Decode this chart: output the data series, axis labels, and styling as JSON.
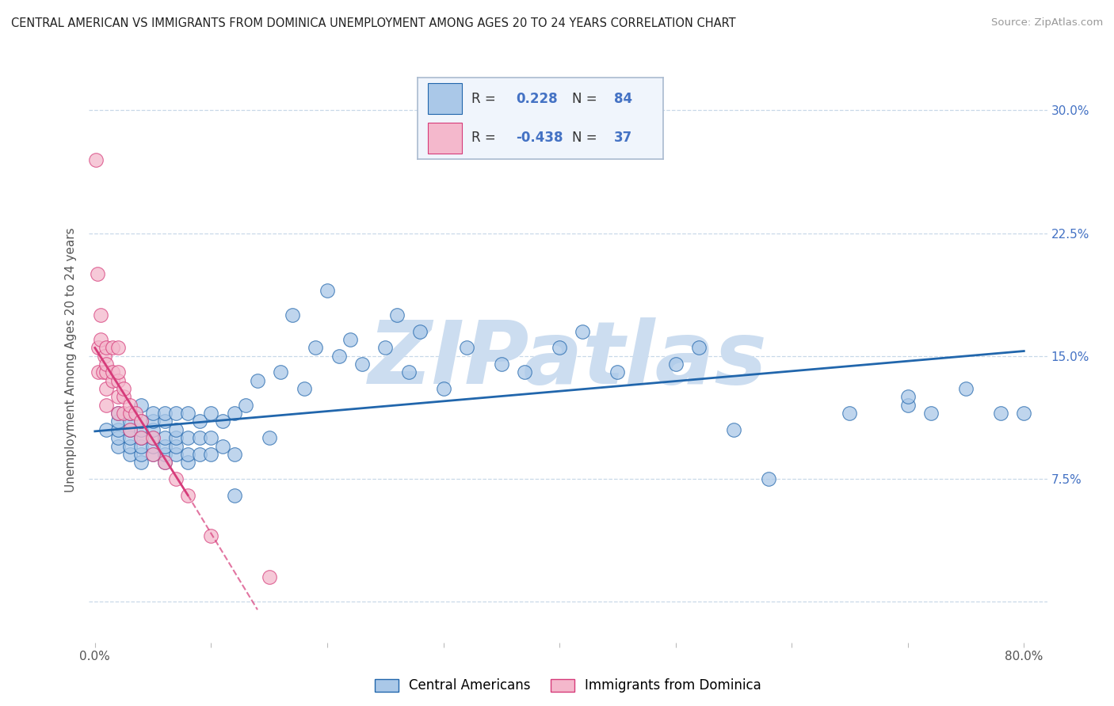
{
  "title": "CENTRAL AMERICAN VS IMMIGRANTS FROM DOMINICA UNEMPLOYMENT AMONG AGES 20 TO 24 YEARS CORRELATION CHART",
  "source": "Source: ZipAtlas.com",
  "ylabel": "Unemployment Among Ages 20 to 24 years",
  "xlim": [
    -0.005,
    0.82
  ],
  "ylim": [
    -0.025,
    0.32
  ],
  "xtick_positions": [
    0.0,
    0.1,
    0.2,
    0.3,
    0.4,
    0.5,
    0.6,
    0.7,
    0.8
  ],
  "xticklabels": [
    "0.0%",
    "",
    "",
    "",
    "",
    "",
    "",
    "",
    "80.0%"
  ],
  "ytick_positions": [
    0.0,
    0.075,
    0.15,
    0.225,
    0.3
  ],
  "ytick_labels_right": [
    "",
    "7.5%",
    "15.0%",
    "22.5%",
    "30.0%"
  ],
  "blue_R": 0.228,
  "blue_N": 84,
  "pink_R": -0.438,
  "pink_N": 37,
  "blue_dot_color": "#aac8e8",
  "pink_dot_color": "#f4b8cc",
  "blue_line_color": "#2166ac",
  "pink_line_color": "#d63b7a",
  "grid_color": "#c8d8e8",
  "bg_color": "#ffffff",
  "watermark_color": "#ccddf0",
  "blue_scatter_x": [
    0.01,
    0.02,
    0.02,
    0.02,
    0.02,
    0.02,
    0.03,
    0.03,
    0.03,
    0.03,
    0.03,
    0.03,
    0.04,
    0.04,
    0.04,
    0.04,
    0.04,
    0.04,
    0.04,
    0.05,
    0.05,
    0.05,
    0.05,
    0.05,
    0.05,
    0.06,
    0.06,
    0.06,
    0.06,
    0.06,
    0.06,
    0.07,
    0.07,
    0.07,
    0.07,
    0.07,
    0.08,
    0.08,
    0.08,
    0.08,
    0.09,
    0.09,
    0.09,
    0.1,
    0.1,
    0.1,
    0.11,
    0.11,
    0.12,
    0.12,
    0.13,
    0.14,
    0.15,
    0.16,
    0.17,
    0.18,
    0.19,
    0.2,
    0.21,
    0.22,
    0.23,
    0.25,
    0.26,
    0.27,
    0.28,
    0.3,
    0.32,
    0.35,
    0.37,
    0.4,
    0.42,
    0.45,
    0.5,
    0.52,
    0.55,
    0.58,
    0.65,
    0.7,
    0.72,
    0.75,
    0.78,
    0.8,
    0.7,
    0.12
  ],
  "blue_scatter_y": [
    0.105,
    0.095,
    0.1,
    0.105,
    0.11,
    0.115,
    0.09,
    0.095,
    0.1,
    0.105,
    0.11,
    0.115,
    0.085,
    0.09,
    0.095,
    0.1,
    0.105,
    0.11,
    0.12,
    0.09,
    0.095,
    0.1,
    0.105,
    0.11,
    0.115,
    0.085,
    0.09,
    0.095,
    0.1,
    0.11,
    0.115,
    0.09,
    0.095,
    0.1,
    0.105,
    0.115,
    0.085,
    0.09,
    0.1,
    0.115,
    0.09,
    0.1,
    0.11,
    0.09,
    0.1,
    0.115,
    0.095,
    0.11,
    0.09,
    0.115,
    0.12,
    0.135,
    0.1,
    0.14,
    0.175,
    0.13,
    0.155,
    0.19,
    0.15,
    0.16,
    0.145,
    0.155,
    0.175,
    0.14,
    0.165,
    0.13,
    0.155,
    0.145,
    0.14,
    0.155,
    0.165,
    0.14,
    0.145,
    0.155,
    0.105,
    0.075,
    0.115,
    0.12,
    0.115,
    0.13,
    0.115,
    0.115,
    0.125,
    0.065
  ],
  "pink_scatter_x": [
    0.001,
    0.002,
    0.003,
    0.003,
    0.005,
    0.005,
    0.007,
    0.008,
    0.01,
    0.01,
    0.01,
    0.01,
    0.01,
    0.015,
    0.015,
    0.015,
    0.02,
    0.02,
    0.02,
    0.02,
    0.02,
    0.025,
    0.025,
    0.025,
    0.03,
    0.03,
    0.03,
    0.035,
    0.04,
    0.04,
    0.05,
    0.05,
    0.06,
    0.07,
    0.08,
    0.1,
    0.15
  ],
  "pink_scatter_y": [
    0.27,
    0.2,
    0.14,
    0.155,
    0.16,
    0.175,
    0.14,
    0.15,
    0.13,
    0.14,
    0.145,
    0.155,
    0.12,
    0.135,
    0.14,
    0.155,
    0.115,
    0.125,
    0.135,
    0.14,
    0.155,
    0.115,
    0.125,
    0.13,
    0.105,
    0.115,
    0.12,
    0.115,
    0.1,
    0.11,
    0.09,
    0.1,
    0.085,
    0.075,
    0.065,
    0.04,
    0.015
  ],
  "blue_trend_x0": 0.0,
  "blue_trend_y0": 0.104,
  "blue_trend_x1": 0.8,
  "blue_trend_y1": 0.153,
  "pink_trend_solid_x0": 0.0,
  "pink_trend_solid_y0": 0.155,
  "pink_trend_solid_x1": 0.08,
  "pink_trend_solid_y1": 0.065,
  "pink_trend_dash_x0": 0.08,
  "pink_trend_dash_y0": 0.065,
  "pink_trend_dash_x1": 0.14,
  "pink_trend_dash_y1": -0.005,
  "legend_R_color": "#4472c4",
  "legend_N_color": "#4472c4",
  "legend_text_color": "#333333",
  "legend_box_facecolor": "#f0f5fc",
  "legend_box_edgecolor": "#aabbd0"
}
